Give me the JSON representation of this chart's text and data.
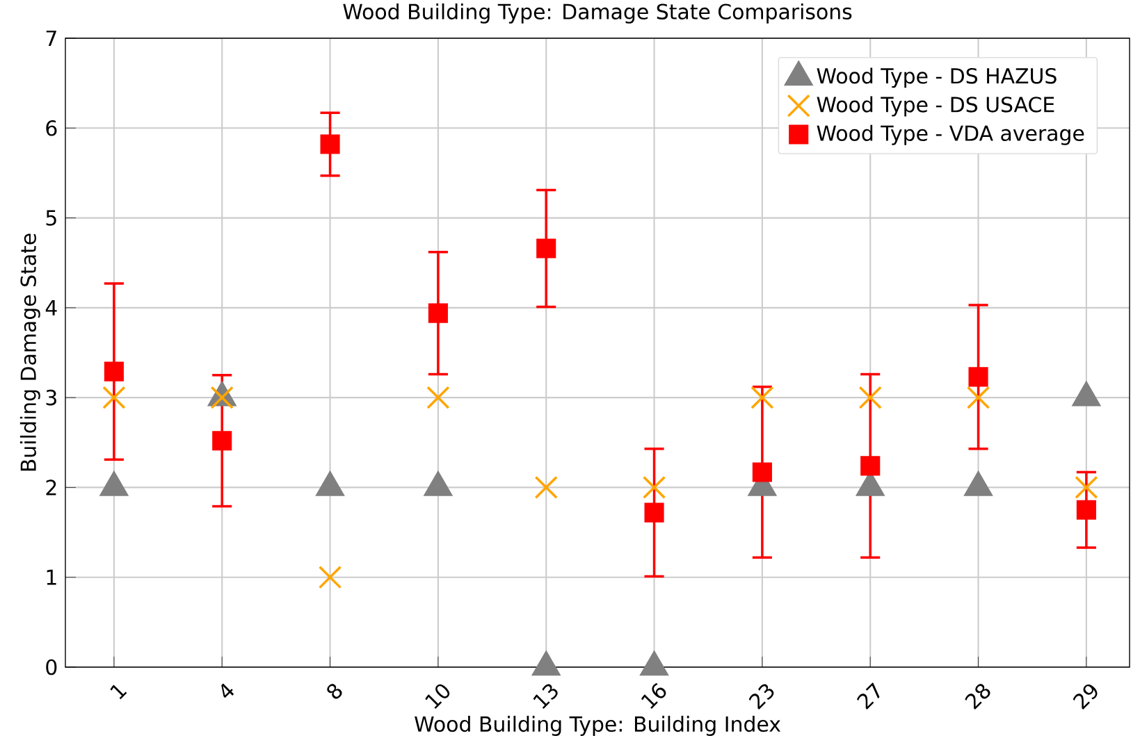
{
  "chart_data": {
    "type": "scatter",
    "title": "Wood Building Type: Damage State Comparisons",
    "xlabel": "Wood Building Type: Building Index",
    "ylabel": "Building Damage State",
    "categories": [
      "1",
      "4",
      "8",
      "10",
      "13",
      "16",
      "23",
      "27",
      "28",
      "29"
    ],
    "series": [
      {
        "name": "Wood Type - DS HAZUS",
        "color": "#808080",
        "marker": "triangle",
        "values": [
          2,
          3,
          2,
          2,
          0,
          0,
          2,
          2,
          2,
          3
        ]
      },
      {
        "name": "Wood Type - DS USACE",
        "color": "#ffa500",
        "marker": "cross",
        "values": [
          3,
          3,
          1,
          3,
          2,
          2,
          3,
          3,
          3,
          2
        ]
      },
      {
        "name": "Wood Type - VDA average",
        "color": "#ff0000",
        "marker": "square",
        "values": [
          3.29,
          2.52,
          5.82,
          3.94,
          4.66,
          1.72,
          2.17,
          2.24,
          3.23,
          1.75
        ],
        "errors": [
          0.98,
          0.73,
          0.35,
          0.68,
          0.65,
          0.71,
          0.95,
          1.02,
          0.8,
          0.42
        ]
      }
    ],
    "ylim": [
      0,
      7
    ],
    "yticks": [
      0,
      1,
      2,
      3,
      4,
      5,
      6,
      7
    ],
    "grid": true,
    "legend": "top right"
  }
}
